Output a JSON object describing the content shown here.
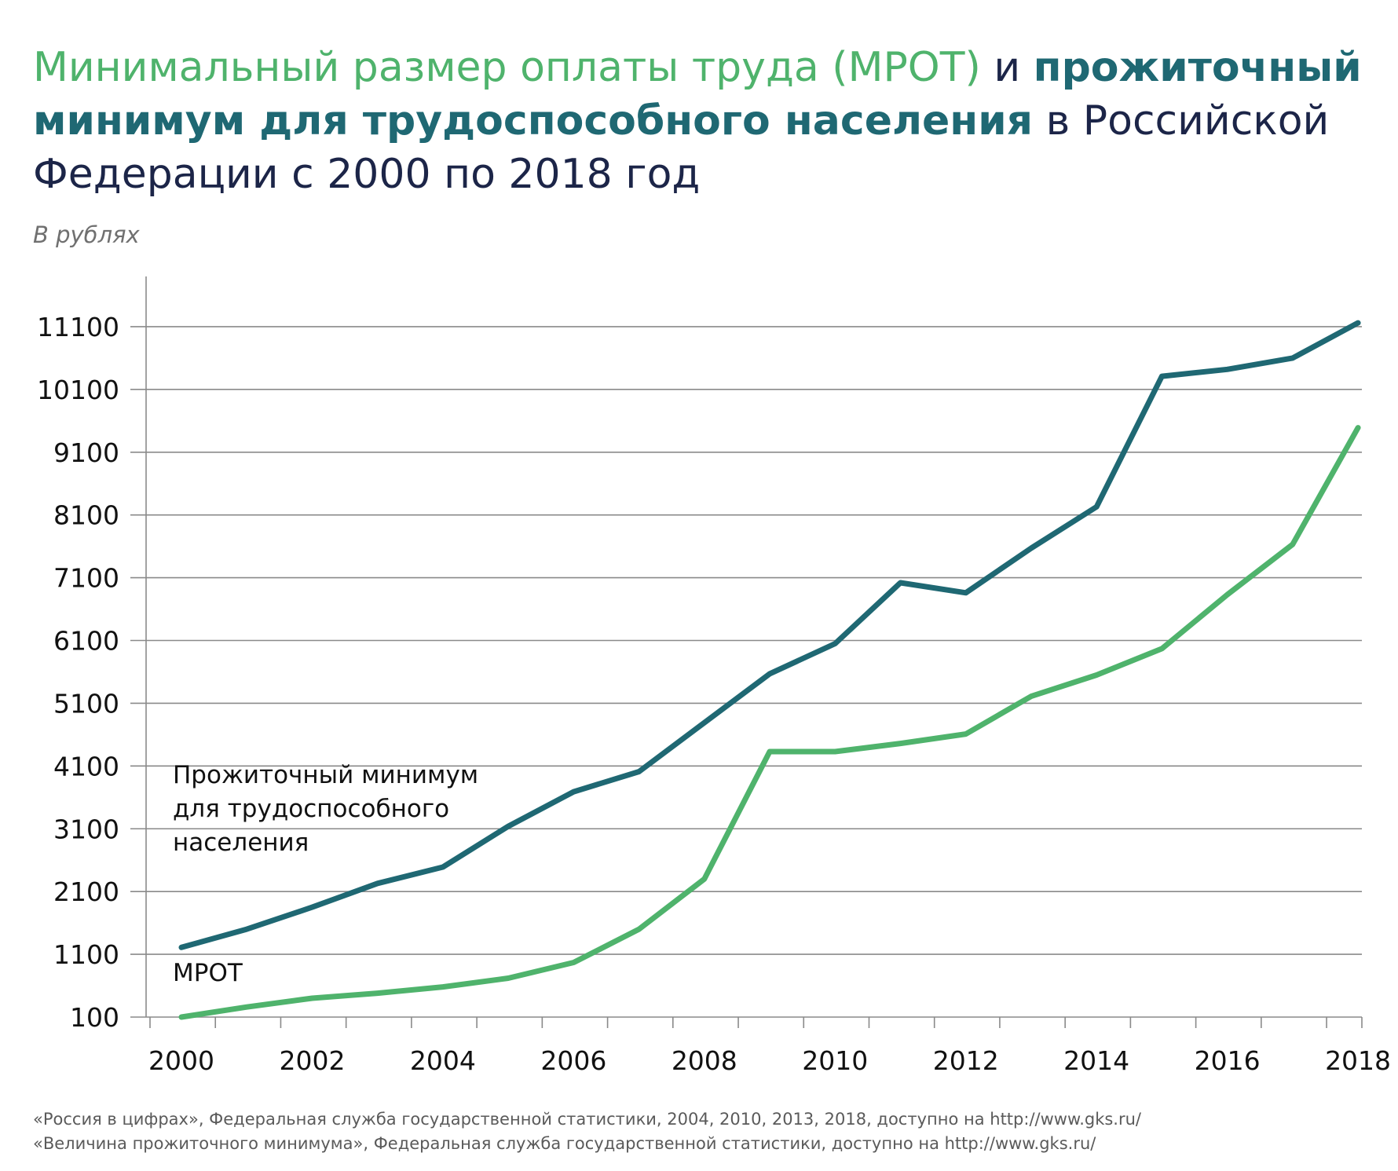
{
  "title": {
    "part1": "Минимальный размер оплаты труда (МРОТ)",
    "part2": " и ",
    "part3": "прожиточный минимум для трудоспособного населения",
    "part4": " в Российской Федерации с 2000 по 2018 год"
  },
  "subtitle": "В рублях",
  "sources": [
    "«Россия в цифрах», Федеральная служба государственной статистики, 2004, 2010, 2013, 2018, доступно на http://www.gks.ru/",
    "«Величина прожиточного минимума», Федеральная служба государственной статистики, доступно на http://www.gks.ru/"
  ],
  "colors": {
    "mrot": "#4fb36c",
    "subsistence": "#1f6873",
    "grid": "#8a8a8a",
    "text": "#111111"
  },
  "chart_data": {
    "type": "line",
    "x": [
      2000,
      2001,
      2002,
      2003,
      2004,
      2005,
      2006,
      2007,
      2008,
      2009,
      2010,
      2011,
      2012,
      2013,
      2014,
      2015,
      2016,
      2017,
      2018
    ],
    "x_ticks": [
      "2000",
      "2002",
      "2004",
      "2006",
      "2008",
      "2010",
      "2012",
      "2014",
      "2016",
      "2018"
    ],
    "y_ticks": [
      "100",
      "1100",
      "2100",
      "3100",
      "4100",
      "5100",
      "6100",
      "7100",
      "8100",
      "9100",
      "10100",
      "11100"
    ],
    "ylim": [
      100,
      11900
    ],
    "grid": true,
    "series": [
      {
        "name": "Прожиточный минимум для трудоспособного населения",
        "label_lines": [
          "Прожиточный минимум",
          "для трудоспособного",
          "населения"
        ],
        "values": [
          1210,
          1500,
          1850,
          2230,
          2490,
          3140,
          3690,
          4010,
          4790,
          5570,
          6050,
          7020,
          6860,
          7570,
          8230,
          10310,
          10420,
          10600,
          11160
        ]
      },
      {
        "name": "МРОТ",
        "label_lines": [
          "МРОТ"
        ],
        "values": [
          100,
          260,
          400,
          480,
          580,
          720,
          970,
          1500,
          2300,
          4330,
          4330,
          4460,
          4610,
          5210,
          5550,
          5970,
          6830,
          7630,
          9490
        ]
      }
    ]
  }
}
